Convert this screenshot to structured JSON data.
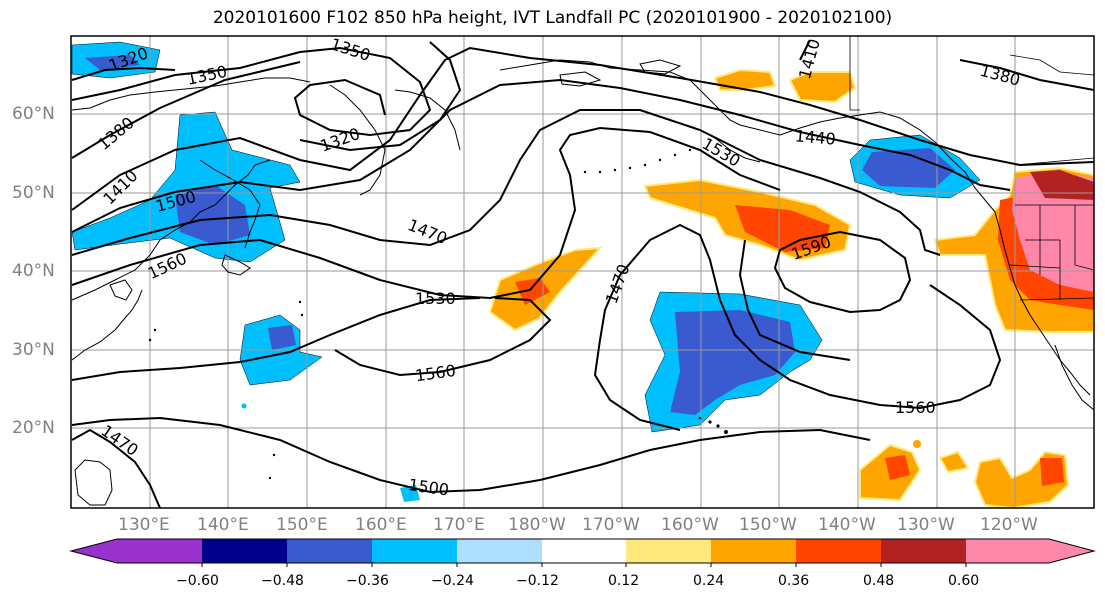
{
  "title": "2020101600 F102 850 hPa height, IVT Landfall PC (2020101900 - 2020102100)",
  "lat_labels": [
    "60°N",
    "50°N",
    "40°N",
    "30°N",
    "20°N"
  ],
  "lon_labels": [
    "130°E",
    "140°E",
    "150°E",
    "160°E",
    "170°E",
    "180°W",
    "170°W",
    "160°W",
    "150°W",
    "140°W",
    "130°W",
    "120°W"
  ],
  "contour_labels": [
    "1320",
    "1350",
    "1350",
    "1320",
    "1380",
    "1410",
    "1410",
    "1380",
    "1440",
    "1530",
    "1500",
    "1470",
    "1560",
    "1530",
    "1470",
    "1590",
    "1560",
    "1560",
    "1470",
    "1500"
  ],
  "colorbar": {
    "ticks": [
      "−0.60",
      "−0.48",
      "−0.36",
      "−0.24",
      "−0.12",
      "0.12",
      "0.24",
      "0.36",
      "0.48",
      "0.60"
    ],
    "colors": [
      "#9932CC",
      "#00008B",
      "#3A5BCF",
      "#00BFFF",
      "#B0E0FF",
      "#FFFFFF",
      "#FFE97F",
      "#FFA500",
      "#FF4500",
      "#B22222",
      "#FF88AA"
    ]
  }
}
